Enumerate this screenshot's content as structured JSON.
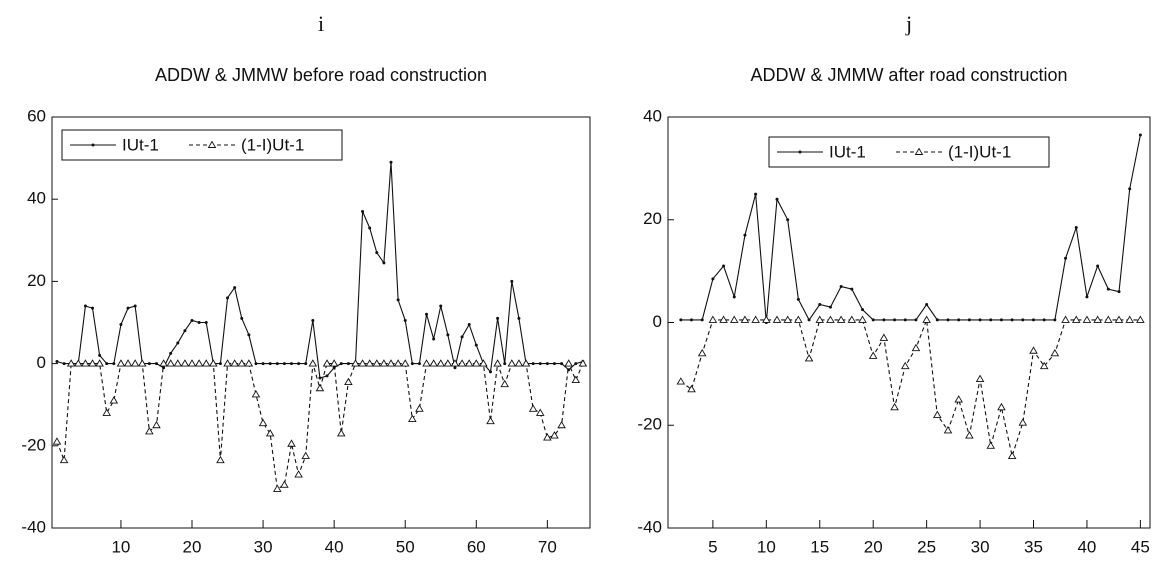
{
  "chart_data": [
    {
      "type": "line",
      "panel_label": "i",
      "title": "ADDW & JMMW before road construction",
      "x": [
        1,
        2,
        3,
        4,
        5,
        6,
        7,
        8,
        9,
        10,
        11,
        12,
        13,
        14,
        15,
        16,
        17,
        18,
        19,
        20,
        21,
        22,
        23,
        24,
        25,
        26,
        27,
        28,
        29,
        30,
        31,
        32,
        33,
        34,
        35,
        36,
        37,
        38,
        39,
        40,
        41,
        42,
        43,
        44,
        45,
        46,
        47,
        48,
        49,
        50,
        51,
        52,
        53,
        54,
        55,
        56,
        57,
        58,
        59,
        60,
        61,
        62,
        63,
        64,
        65,
        66,
        67,
        68,
        69,
        70,
        71,
        72,
        73,
        74,
        75
      ],
      "series": [
        {
          "name": "IUt-1",
          "color": "#111111",
          "line_style": "solid",
          "marker": "dot",
          "values": [
            0.5,
            0,
            0,
            0,
            14,
            13.5,
            2,
            0,
            0,
            9.5,
            13.5,
            14,
            0,
            0,
            0,
            -1,
            2.5,
            5,
            8,
            10.5,
            10,
            10,
            0,
            0,
            16,
            18.5,
            11,
            7,
            0,
            0,
            0,
            0,
            0,
            0,
            0,
            0,
            10.5,
            -3.5,
            -3,
            -1,
            0,
            0,
            0,
            37,
            33,
            27,
            24.5,
            49,
            15.5,
            10.5,
            0,
            0,
            12,
            6,
            14,
            7,
            -1,
            6.5,
            9.5,
            4.5,
            0,
            -2,
            11,
            0,
            20,
            11,
            0,
            0,
            0,
            0,
            0,
            0,
            -1.5,
            0,
            0.5
          ]
        },
        {
          "name": "(1-I)Ut-1",
          "color": "#111111",
          "line_style": "dashed",
          "marker": "triangle",
          "values": [
            -19,
            -23.5,
            0,
            0,
            0,
            0,
            0,
            -12,
            -9,
            0,
            0,
            0,
            0,
            -16.5,
            -15,
            0,
            0,
            0,
            0,
            0,
            0,
            0,
            0,
            -23.5,
            0,
            0,
            0,
            0,
            -7.5,
            -14.5,
            -17,
            -30.5,
            -29.5,
            -19.5,
            -27,
            -22.5,
            0,
            -6,
            0,
            0,
            -17,
            -4.5,
            0,
            0,
            0,
            0,
            0,
            0,
            0,
            0,
            -13.5,
            -11,
            0,
            0,
            0,
            0,
            0,
            0,
            0,
            0,
            0,
            -14,
            0,
            -5,
            0,
            0,
            0,
            -11,
            -12,
            -18,
            -17.5,
            -15,
            0,
            -4,
            0
          ]
        }
      ],
      "xlim": [
        0.3,
        76
      ],
      "ylim": [
        -40,
        60
      ],
      "xticks": [
        10,
        20,
        30,
        40,
        50,
        60,
        70
      ],
      "yticks": [
        -40,
        -20,
        0,
        20,
        40,
        60
      ],
      "legend": "upper left"
    },
    {
      "type": "line",
      "panel_label": "j",
      "title": "ADDW & JMMW after road construction",
      "x": [
        2,
        3,
        4,
        5,
        6,
        7,
        8,
        9,
        10,
        11,
        12,
        13,
        14,
        15,
        16,
        17,
        18,
        19,
        20,
        21,
        22,
        23,
        24,
        25,
        26,
        27,
        28,
        29,
        30,
        31,
        32,
        33,
        34,
        35,
        36,
        37,
        38,
        39,
        40,
        41,
        42,
        43,
        44,
        45
      ],
      "series": [
        {
          "name": "IUt-1",
          "color": "#111111",
          "line_style": "solid",
          "marker": "dot",
          "values": [
            0.5,
            0.5,
            0.5,
            8.5,
            11,
            5,
            17,
            25,
            0,
            24,
            20,
            4.5,
            0.5,
            3.5,
            3,
            7,
            6.5,
            2.5,
            0.5,
            0.5,
            0.5,
            0.5,
            0.5,
            3.5,
            0.5,
            0.5,
            0.5,
            0.5,
            0.5,
            0.5,
            0.5,
            0.5,
            0.5,
            0.5,
            0.5,
            0.5,
            12.5,
            18.5,
            5,
            11,
            6.5,
            6,
            26,
            36.5
          ]
        },
        {
          "name": "(1-I)Ut-1",
          "color": "#111111",
          "line_style": "dashed",
          "marker": "triangle",
          "values": [
            -11.5,
            -13,
            -6,
            0.5,
            0.5,
            0.5,
            0.5,
            0.5,
            0.5,
            0.5,
            0.5,
            0.5,
            -7,
            0.5,
            0.5,
            0.5,
            0.5,
            0.5,
            -6.5,
            -3,
            -16.5,
            -8.5,
            -5,
            0.5,
            -18,
            -21,
            -15,
            -22,
            -11,
            -24,
            -16.5,
            -26,
            -19.5,
            -5.5,
            -8.5,
            -6,
            0.5,
            0.5,
            0.5,
            0.5,
            0.5,
            0.5,
            0.5,
            0.5
          ]
        }
      ],
      "xlim": [
        0.8,
        45.9
      ],
      "ylim": [
        -40,
        40
      ],
      "xticks": [
        5,
        10,
        15,
        20,
        25,
        30,
        35,
        40,
        45
      ],
      "yticks": [
        -40,
        -20,
        0,
        20,
        40
      ],
      "legend": "upper center"
    }
  ]
}
